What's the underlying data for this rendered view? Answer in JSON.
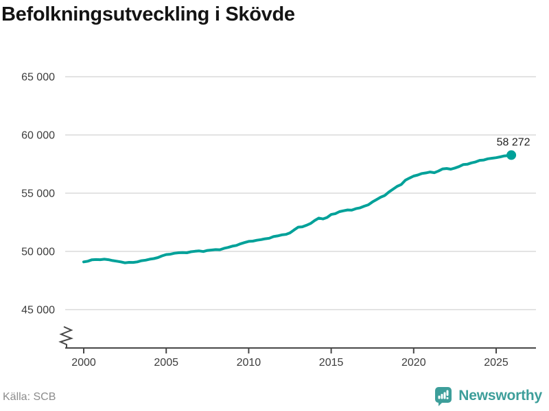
{
  "header": {
    "title": "Befolkningsutveckling i Skövde"
  },
  "footer": {
    "source_label": "Källa: SCB",
    "brand_name": "Newsworthy",
    "brand_icon": "newsworthy-chart-bubble-icon"
  },
  "colors": {
    "line": "#00a199",
    "brand": "#3d9e9a",
    "grid": "#e3e3e3",
    "axis": "#474747",
    "tick_label": "#3c3c3c",
    "title": "#141414",
    "annotation": "#1f1f1f",
    "source": "#8c8c8c"
  },
  "chart_data": {
    "type": "line",
    "title": "Befolkningsutveckling i Skövde",
    "xlabel": "",
    "ylabel": "",
    "grid": "horizontal",
    "legend": "none",
    "axis_break": true,
    "x_range": [
      1998.9,
      2027.4
    ],
    "y_range": [
      45000,
      65000
    ],
    "x_ticks": [
      2000,
      2005,
      2010,
      2015,
      2020,
      2025
    ],
    "x_tick_labels": [
      "2000",
      "2005",
      "2010",
      "2015",
      "2020",
      "2025"
    ],
    "y_ticks": [
      45000,
      50000,
      55000,
      60000,
      65000
    ],
    "y_tick_labels": [
      "45 000",
      "50 000",
      "55 000",
      "60 000",
      "65 000"
    ],
    "end_label": "58 272",
    "end_value": 58272,
    "points": [
      [
        2000.0,
        49100
      ],
      [
        2000.25,
        49160
      ],
      [
        2000.5,
        49280
      ],
      [
        2000.75,
        49300
      ],
      [
        2001.0,
        49290
      ],
      [
        2001.25,
        49330
      ],
      [
        2001.5,
        49290
      ],
      [
        2001.75,
        49210
      ],
      [
        2002.0,
        49160
      ],
      [
        2002.25,
        49100
      ],
      [
        2002.5,
        49020
      ],
      [
        2002.75,
        49060
      ],
      [
        2003.0,
        49050
      ],
      [
        2003.25,
        49100
      ],
      [
        2003.5,
        49200
      ],
      [
        2003.75,
        49250
      ],
      [
        2004.0,
        49330
      ],
      [
        2004.25,
        49380
      ],
      [
        2004.5,
        49470
      ],
      [
        2004.75,
        49620
      ],
      [
        2005.0,
        49730
      ],
      [
        2005.25,
        49760
      ],
      [
        2005.5,
        49840
      ],
      [
        2005.75,
        49880
      ],
      [
        2006.0,
        49900
      ],
      [
        2006.25,
        49880
      ],
      [
        2006.5,
        49970
      ],
      [
        2006.75,
        50010
      ],
      [
        2007.0,
        50040
      ],
      [
        2007.25,
        49990
      ],
      [
        2007.5,
        50080
      ],
      [
        2007.75,
        50120
      ],
      [
        2008.0,
        50150
      ],
      [
        2008.25,
        50140
      ],
      [
        2008.5,
        50260
      ],
      [
        2008.75,
        50340
      ],
      [
        2009.0,
        50450
      ],
      [
        2009.25,
        50510
      ],
      [
        2009.5,
        50650
      ],
      [
        2009.75,
        50760
      ],
      [
        2010.0,
        50860
      ],
      [
        2010.25,
        50880
      ],
      [
        2010.5,
        50960
      ],
      [
        2010.75,
        51010
      ],
      [
        2011.0,
        51080
      ],
      [
        2011.25,
        51130
      ],
      [
        2011.5,
        51270
      ],
      [
        2011.75,
        51330
      ],
      [
        2012.0,
        51420
      ],
      [
        2012.25,
        51460
      ],
      [
        2012.5,
        51590
      ],
      [
        2012.75,
        51840
      ],
      [
        2013.0,
        52080
      ],
      [
        2013.25,
        52110
      ],
      [
        2013.5,
        52240
      ],
      [
        2013.75,
        52400
      ],
      [
        2014.0,
        52650
      ],
      [
        2014.25,
        52860
      ],
      [
        2014.5,
        52790
      ],
      [
        2014.75,
        52910
      ],
      [
        2015.0,
        53170
      ],
      [
        2015.25,
        53240
      ],
      [
        2015.5,
        53410
      ],
      [
        2015.75,
        53490
      ],
      [
        2016.0,
        53560
      ],
      [
        2016.25,
        53540
      ],
      [
        2016.5,
        53670
      ],
      [
        2016.75,
        53740
      ],
      [
        2017.0,
        53880
      ],
      [
        2017.25,
        54000
      ],
      [
        2017.5,
        54250
      ],
      [
        2017.75,
        54450
      ],
      [
        2018.0,
        54650
      ],
      [
        2018.25,
        54800
      ],
      [
        2018.5,
        55100
      ],
      [
        2018.75,
        55350
      ],
      [
        2019.0,
        55590
      ],
      [
        2019.25,
        55750
      ],
      [
        2019.5,
        56120
      ],
      [
        2019.75,
        56300
      ],
      [
        2020.0,
        56470
      ],
      [
        2020.25,
        56560
      ],
      [
        2020.5,
        56690
      ],
      [
        2020.75,
        56740
      ],
      [
        2021.0,
        56820
      ],
      [
        2021.25,
        56760
      ],
      [
        2021.5,
        56900
      ],
      [
        2021.75,
        57080
      ],
      [
        2022.0,
        57120
      ],
      [
        2022.25,
        57060
      ],
      [
        2022.5,
        57160
      ],
      [
        2022.75,
        57280
      ],
      [
        2023.0,
        57450
      ],
      [
        2023.25,
        57480
      ],
      [
        2023.5,
        57600
      ],
      [
        2023.75,
        57680
      ],
      [
        2024.0,
        57820
      ],
      [
        2024.25,
        57850
      ],
      [
        2024.5,
        57950
      ],
      [
        2024.75,
        58000
      ],
      [
        2025.0,
        58050
      ],
      [
        2025.25,
        58120
      ],
      [
        2025.5,
        58200
      ],
      [
        2025.75,
        58230
      ],
      [
        2025.92,
        58272
      ]
    ]
  }
}
